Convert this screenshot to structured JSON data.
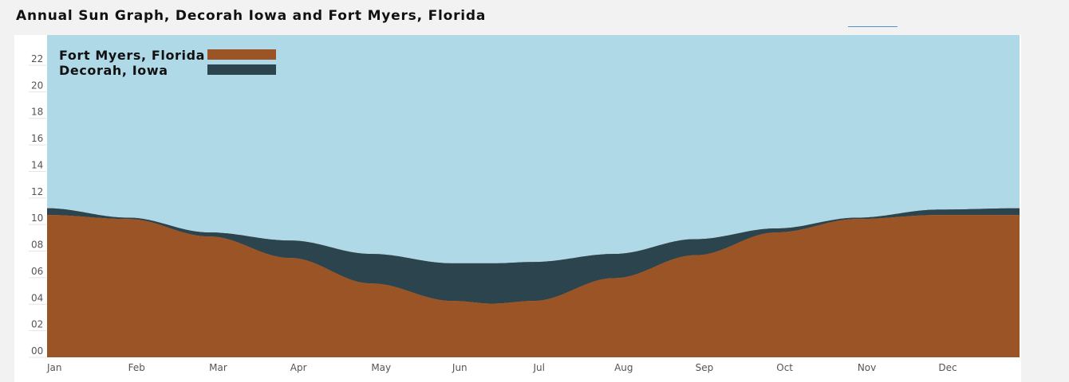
{
  "chart_data": {
    "type": "area",
    "title": "Annual Sun Graph, Decorah Iowa and Fort Myers, Florida",
    "xlabel": "",
    "ylabel": "",
    "categories": [
      "Jan",
      "Feb",
      "Mar",
      "Apr",
      "May",
      "Jun",
      "Jul",
      "Aug",
      "Sep",
      "Oct",
      "Nov",
      "Dec"
    ],
    "yticks": [
      "00",
      "02",
      "04",
      "06",
      "08",
      "10",
      "12",
      "14",
      "16",
      "18",
      "20",
      "22"
    ],
    "ylim": [
      0,
      24
    ],
    "xlim": [
      0,
      12
    ],
    "grid": false,
    "legend_position": "top-left",
    "series": [
      {
        "name": "Fort Myers, Florida",
        "color": "#9b5426",
        "x": [
          0,
          1,
          2,
          3,
          4,
          5,
          5.5,
          6,
          7,
          8,
          9,
          10,
          11,
          12
        ],
        "values": [
          10.6,
          10.3,
          9.0,
          7.4,
          5.5,
          4.2,
          4.0,
          4.2,
          5.9,
          7.6,
          9.3,
          10.3,
          10.6,
          10.6
        ]
      },
      {
        "name": "Decorah, Iowa",
        "color": "#2b444e",
        "x": [
          0,
          1,
          2,
          3,
          4,
          5,
          5.5,
          6,
          7,
          8,
          9,
          10,
          11,
          12
        ],
        "values": [
          11.1,
          10.4,
          9.3,
          8.7,
          7.7,
          7.0,
          7.0,
          7.1,
          7.7,
          8.8,
          9.6,
          10.4,
          11.0,
          11.1
        ]
      }
    ],
    "colors": {
      "sky": "#b0d9e8",
      "gap": "#d99a6b",
      "tick": "#555555"
    }
  }
}
